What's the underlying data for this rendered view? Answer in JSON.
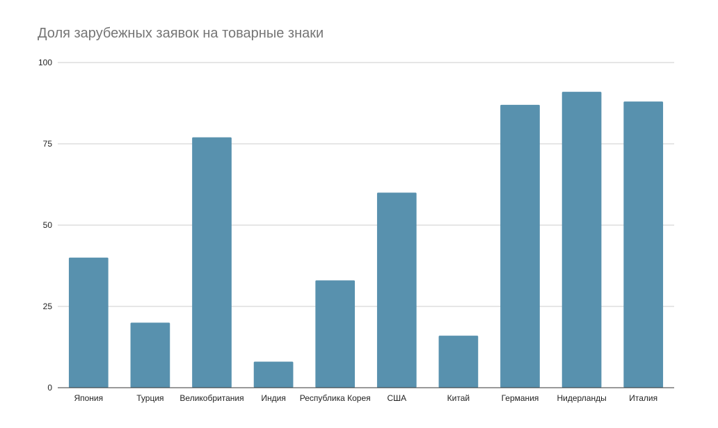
{
  "chart_data": {
    "type": "bar",
    "title": "Доля зарубежных заявок на товарные знаки",
    "xlabel": "",
    "ylabel": "",
    "categories": [
      "Япония",
      "Турция",
      "Великобритания",
      "Индия",
      "Республика Корея",
      "США",
      "Китай",
      "Германия",
      "Нидерланды",
      "Италия"
    ],
    "values": [
      40,
      20,
      77,
      8,
      33,
      60,
      16,
      87,
      91,
      88
    ],
    "ylim": [
      0,
      100
    ],
    "yticks": [
      "0",
      "25",
      "50",
      "75",
      "100"
    ],
    "grid": true,
    "legend": "none",
    "colors": {
      "bar": "#5891ae",
      "grid": "#cccccc",
      "axis": "#333333",
      "title": "#757575"
    }
  }
}
